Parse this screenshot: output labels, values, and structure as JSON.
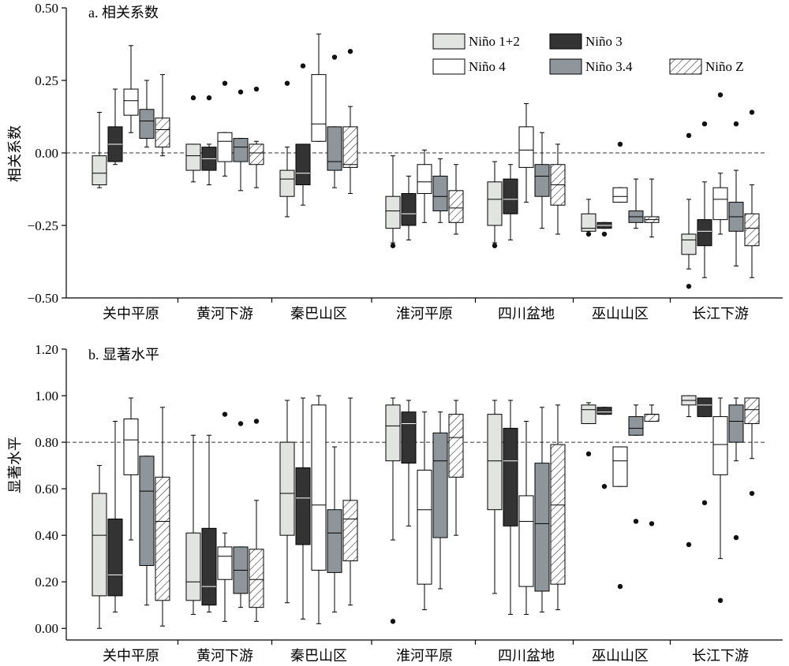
{
  "chart_data": [
    {
      "type": "box",
      "title": "a. 相关系数",
      "ylabel": "相关系数",
      "ylim": [
        -0.5,
        0.5
      ],
      "yticks": [
        "0.50",
        "0.25",
        "0.00",
        "−0.25",
        "−0.50"
      ],
      "ytick_values": [
        0.5,
        0.25,
        0.0,
        -0.25,
        -0.5
      ],
      "reference_line": 0.0,
      "categories": [
        "关中平原",
        "黄河下游",
        "秦巴山区",
        "淮河平原",
        "四川盆地",
        "巫山山区",
        "长江下游"
      ],
      "series": [
        {
          "name": "Niño 1+2",
          "boxes": [
            {
              "min": -0.12,
              "q1": -0.11,
              "median": -0.07,
              "q3": -0.01,
              "max": 0.14,
              "outliers": []
            },
            {
              "min": -0.1,
              "q1": -0.06,
              "median": -0.01,
              "q3": 0.03,
              "max": 0.03,
              "outliers": [
                0.19
              ]
            },
            {
              "min": -0.22,
              "q1": -0.15,
              "median": -0.09,
              "q3": -0.06,
              "max": 0.02,
              "outliers": [
                0.24
              ]
            },
            {
              "min": -0.31,
              "q1": -0.26,
              "median": -0.2,
              "q3": -0.15,
              "max": -0.01,
              "outliers": [
                -0.32
              ]
            },
            {
              "min": -0.31,
              "q1": -0.25,
              "median": -0.16,
              "q3": -0.1,
              "max": -0.03,
              "outliers": [
                -0.32
              ]
            },
            {
              "min": -0.27,
              "q1": -0.27,
              "median": -0.26,
              "q3": -0.21,
              "max": -0.16,
              "outliers": [
                -0.28
              ]
            },
            {
              "min": -0.4,
              "q1": -0.35,
              "median": -0.3,
              "q3": -0.28,
              "max": -0.16,
              "outliers": [
                -0.46,
                0.06
              ]
            }
          ]
        },
        {
          "name": "Niño 3",
          "boxes": [
            {
              "min": -0.04,
              "q1": -0.03,
              "median": 0.03,
              "q3": 0.09,
              "max": 0.22,
              "outliers": []
            },
            {
              "min": -0.11,
              "q1": -0.06,
              "median": -0.02,
              "q3": 0.02,
              "max": 0.03,
              "outliers": [
                0.19
              ]
            },
            {
              "min": -0.18,
              "q1": -0.11,
              "median": -0.07,
              "q3": 0.03,
              "max": 0.03,
              "outliers": [
                0.3
              ]
            },
            {
              "min": -0.3,
              "q1": -0.25,
              "median": -0.21,
              "q3": -0.14,
              "max": -0.08,
              "outliers": []
            },
            {
              "min": -0.3,
              "q1": -0.21,
              "median": -0.16,
              "q3": -0.09,
              "max": -0.04,
              "outliers": []
            },
            {
              "min": -0.26,
              "q1": -0.26,
              "median": -0.25,
              "q3": -0.24,
              "max": -0.24,
              "outliers": [
                -0.28
              ]
            },
            {
              "min": -0.43,
              "q1": -0.32,
              "median": -0.27,
              "q3": -0.23,
              "max": -0.1,
              "outliers": [
                0.1
              ]
            }
          ]
        },
        {
          "name": "Niño 4",
          "boxes": [
            {
              "min": 0.07,
              "q1": 0.13,
              "median": 0.18,
              "q3": 0.22,
              "max": 0.37,
              "outliers": []
            },
            {
              "min": -0.08,
              "q1": -0.03,
              "median": 0.04,
              "q3": 0.07,
              "max": 0.07,
              "outliers": [
                0.24
              ]
            },
            {
              "min": 0.04,
              "q1": 0.04,
              "median": 0.1,
              "q3": 0.27,
              "max": 0.41,
              "outliers": []
            },
            {
              "min": -0.24,
              "q1": -0.14,
              "median": -0.1,
              "q3": -0.04,
              "max": 0.01,
              "outliers": []
            },
            {
              "min": -0.17,
              "q1": -0.05,
              "median": 0.01,
              "q3": 0.09,
              "max": 0.17,
              "outliers": []
            },
            {
              "min": -0.17,
              "q1": -0.17,
              "median": -0.15,
              "q3": -0.12,
              "max": -0.12,
              "outliers": [
                0.03
              ]
            },
            {
              "min": -0.28,
              "q1": -0.23,
              "median": -0.16,
              "q3": -0.12,
              "max": -0.07,
              "outliers": [
                0.2
              ]
            }
          ]
        },
        {
          "name": "Niño 3.4",
          "boxes": [
            {
              "min": 0.02,
              "q1": 0.05,
              "median": 0.11,
              "q3": 0.15,
              "max": 0.25,
              "outliers": []
            },
            {
              "min": -0.13,
              "q1": -0.03,
              "median": 0.02,
              "q3": 0.05,
              "max": 0.05,
              "outliers": [
                0.21
              ]
            },
            {
              "min": -0.12,
              "q1": -0.06,
              "median": -0.03,
              "q3": 0.09,
              "max": 0.09,
              "outliers": [
                0.33
              ]
            },
            {
              "min": -0.24,
              "q1": -0.2,
              "median": -0.15,
              "q3": -0.08,
              "max": -0.02,
              "outliers": []
            },
            {
              "min": -0.26,
              "q1": -0.15,
              "median": -0.08,
              "q3": -0.04,
              "max": 0.07,
              "outliers": []
            },
            {
              "min": -0.26,
              "q1": -0.24,
              "median": -0.22,
              "q3": -0.2,
              "max": -0.09,
              "outliers": []
            },
            {
              "min": -0.39,
              "q1": -0.27,
              "median": -0.22,
              "q3": -0.17,
              "max": -0.06,
              "outliers": [
                0.1
              ]
            }
          ]
        },
        {
          "name": "Niño Z",
          "boxes": [
            {
              "min": -0.01,
              "q1": 0.02,
              "median": 0.08,
              "q3": 0.12,
              "max": 0.27,
              "outliers": []
            },
            {
              "min": -0.12,
              "q1": -0.04,
              "median": 0.0,
              "q3": 0.03,
              "max": 0.04,
              "outliers": [
                0.22
              ]
            },
            {
              "min": -0.14,
              "q1": -0.05,
              "median": -0.04,
              "q3": 0.09,
              "max": 0.16,
              "outliers": [
                0.35
              ]
            },
            {
              "min": -0.28,
              "q1": -0.24,
              "median": -0.19,
              "q3": -0.13,
              "max": -0.04,
              "outliers": []
            },
            {
              "min": -0.28,
              "q1": -0.18,
              "median": -0.11,
              "q3": -0.04,
              "max": 0.03,
              "outliers": []
            },
            {
              "min": -0.29,
              "q1": -0.24,
              "median": -0.23,
              "q3": -0.22,
              "max": -0.09,
              "outliers": []
            },
            {
              "min": -0.43,
              "q1": -0.32,
              "median": -0.26,
              "q3": -0.21,
              "max": -0.11,
              "outliers": [
                0.14
              ]
            }
          ]
        }
      ]
    },
    {
      "type": "box",
      "title": "b. 显著水平",
      "ylabel": "显著水平",
      "ylim": [
        -0.05,
        1.2
      ],
      "yticks": [
        "1.20",
        "1.00",
        "0.80",
        "0.60",
        "0.40",
        "0.20",
        "0.00"
      ],
      "ytick_values": [
        1.2,
        1.0,
        0.8,
        0.6,
        0.4,
        0.2,
        0.0
      ],
      "reference_line": 0.8,
      "categories": [
        "关中平原",
        "黄河下游",
        "秦巴山区",
        "淮河平原",
        "四川盆地",
        "巫山山区",
        "长江下游"
      ],
      "series": [
        {
          "name": "Niño 1+2",
          "boxes": [
            {
              "min": 0.0,
              "q1": 0.14,
              "median": 0.4,
              "q3": 0.58,
              "max": 0.7,
              "outliers": []
            },
            {
              "min": 0.06,
              "q1": 0.12,
              "median": 0.2,
              "q3": 0.41,
              "max": 0.83,
              "outliers": []
            },
            {
              "min": 0.11,
              "q1": 0.4,
              "median": 0.58,
              "q3": 0.8,
              "max": 0.98,
              "outliers": []
            },
            {
              "min": 0.38,
              "q1": 0.72,
              "median": 0.87,
              "q3": 0.96,
              "max": 0.99,
              "outliers": [
                0.03
              ]
            },
            {
              "min": 0.15,
              "q1": 0.51,
              "median": 0.72,
              "q3": 0.92,
              "max": 0.98,
              "outliers": []
            },
            {
              "min": 0.88,
              "q1": 0.88,
              "median": 0.94,
              "q3": 0.96,
              "max": 0.97,
              "outliers": [
                0.75
              ]
            },
            {
              "min": 0.91,
              "q1": 0.96,
              "median": 0.98,
              "q3": 1.0,
              "max": 1.0,
              "outliers": [
                0.36
              ]
            }
          ]
        },
        {
          "name": "Niño 3",
          "boxes": [
            {
              "min": 0.07,
              "q1": 0.14,
              "median": 0.23,
              "q3": 0.47,
              "max": 0.89,
              "outliers": []
            },
            {
              "min": 0.07,
              "q1": 0.1,
              "median": 0.18,
              "q3": 0.43,
              "max": 0.83,
              "outliers": []
            },
            {
              "min": 0.04,
              "q1": 0.36,
              "median": 0.56,
              "q3": 0.69,
              "max": 0.99,
              "outliers": []
            },
            {
              "min": 0.44,
              "q1": 0.71,
              "median": 0.88,
              "q3": 0.93,
              "max": 0.98,
              "outliers": []
            },
            {
              "min": 0.06,
              "q1": 0.44,
              "median": 0.72,
              "q3": 0.86,
              "max": 0.98,
              "outliers": []
            },
            {
              "min": 0.92,
              "q1": 0.92,
              "median": 0.93,
              "q3": 0.95,
              "max": 0.95,
              "outliers": [
                0.61
              ]
            },
            {
              "min": 0.91,
              "q1": 0.91,
              "median": 0.96,
              "q3": 0.99,
              "max": 0.99,
              "outliers": [
                0.54
              ]
            }
          ]
        },
        {
          "name": "Niño 4",
          "boxes": [
            {
              "min": 0.38,
              "q1": 0.66,
              "median": 0.81,
              "q3": 0.9,
              "max": 0.99,
              "outliers": []
            },
            {
              "min": 0.03,
              "q1": 0.21,
              "median": 0.31,
              "q3": 0.35,
              "max": 0.41,
              "outliers": [
                0.92
              ]
            },
            {
              "min": 0.02,
              "q1": 0.25,
              "median": 0.53,
              "q3": 0.96,
              "max": 1.0,
              "outliers": []
            },
            {
              "min": 0.08,
              "q1": 0.19,
              "median": 0.51,
              "q3": 0.68,
              "max": 0.93,
              "outliers": []
            },
            {
              "min": 0.06,
              "q1": 0.18,
              "median": 0.46,
              "q3": 0.57,
              "max": 0.89,
              "outliers": []
            },
            {
              "min": 0.61,
              "q1": 0.61,
              "median": 0.72,
              "q3": 0.78,
              "max": 0.78,
              "outliers": [
                0.18
              ]
            },
            {
              "min": 0.3,
              "q1": 0.66,
              "median": 0.79,
              "q3": 0.91,
              "max": 0.99,
              "outliers": [
                0.12
              ]
            }
          ]
        },
        {
          "name": "Niño 3.4",
          "boxes": [
            {
              "min": 0.1,
              "q1": 0.27,
              "median": 0.59,
              "q3": 0.74,
              "max": 0.74,
              "outliers": []
            },
            {
              "min": 0.09,
              "q1": 0.15,
              "median": 0.25,
              "q3": 0.35,
              "max": 0.35,
              "outliers": [
                0.88
              ]
            },
            {
              "min": 0.07,
              "q1": 0.24,
              "median": 0.41,
              "q3": 0.51,
              "max": 0.78,
              "outliers": []
            },
            {
              "min": 0.17,
              "q1": 0.39,
              "median": 0.72,
              "q3": 0.84,
              "max": 0.93,
              "outliers": []
            },
            {
              "min": 0.07,
              "q1": 0.16,
              "median": 0.45,
              "q3": 0.71,
              "max": 0.95,
              "outliers": []
            },
            {
              "min": 0.83,
              "q1": 0.83,
              "median": 0.86,
              "q3": 0.91,
              "max": 0.96,
              "outliers": [
                0.46
              ]
            },
            {
              "min": 0.72,
              "q1": 0.8,
              "median": 0.89,
              "q3": 0.96,
              "max": 0.99,
              "outliers": [
                0.39
              ]
            }
          ]
        },
        {
          "name": "Niño Z",
          "boxes": [
            {
              "min": 0.01,
              "q1": 0.12,
              "median": 0.46,
              "q3": 0.65,
              "max": 0.95,
              "outliers": []
            },
            {
              "min": 0.03,
              "q1": 0.09,
              "median": 0.21,
              "q3": 0.34,
              "max": 0.55,
              "outliers": [
                0.89
              ]
            },
            {
              "min": 0.1,
              "q1": 0.29,
              "median": 0.47,
              "q3": 0.55,
              "max": 0.99,
              "outliers": []
            },
            {
              "min": 0.4,
              "q1": 0.65,
              "median": 0.82,
              "q3": 0.92,
              "max": 0.98,
              "outliers": []
            },
            {
              "min": 0.08,
              "q1": 0.19,
              "median": 0.53,
              "q3": 0.79,
              "max": 0.96,
              "outliers": []
            },
            {
              "min": 0.89,
              "q1": 0.89,
              "median": 0.92,
              "q3": 0.92,
              "max": 0.96,
              "outliers": [
                0.45
              ]
            },
            {
              "min": 0.73,
              "q1": 0.88,
              "median": 0.94,
              "q3": 0.99,
              "max": 0.99,
              "outliers": [
                0.58
              ]
            }
          ]
        }
      ]
    }
  ],
  "legend": {
    "placement": "top-right",
    "items": [
      {
        "name": "Niño 1+2",
        "key": "n12"
      },
      {
        "name": "Niño 3",
        "key": "n3"
      },
      {
        "name": "Niño 4",
        "key": "n4"
      },
      {
        "name": "Niño 3.4",
        "key": "n34"
      },
      {
        "name": "Niño Z",
        "key": "nz"
      }
    ]
  },
  "colors": {
    "n12": "#e2e4e1",
    "n3": "#333333",
    "n4": "#ffffff",
    "n34": "#8f969b",
    "nz_hatch": "#222222",
    "outlier": "#111111",
    "reference_line": "#333333"
  }
}
